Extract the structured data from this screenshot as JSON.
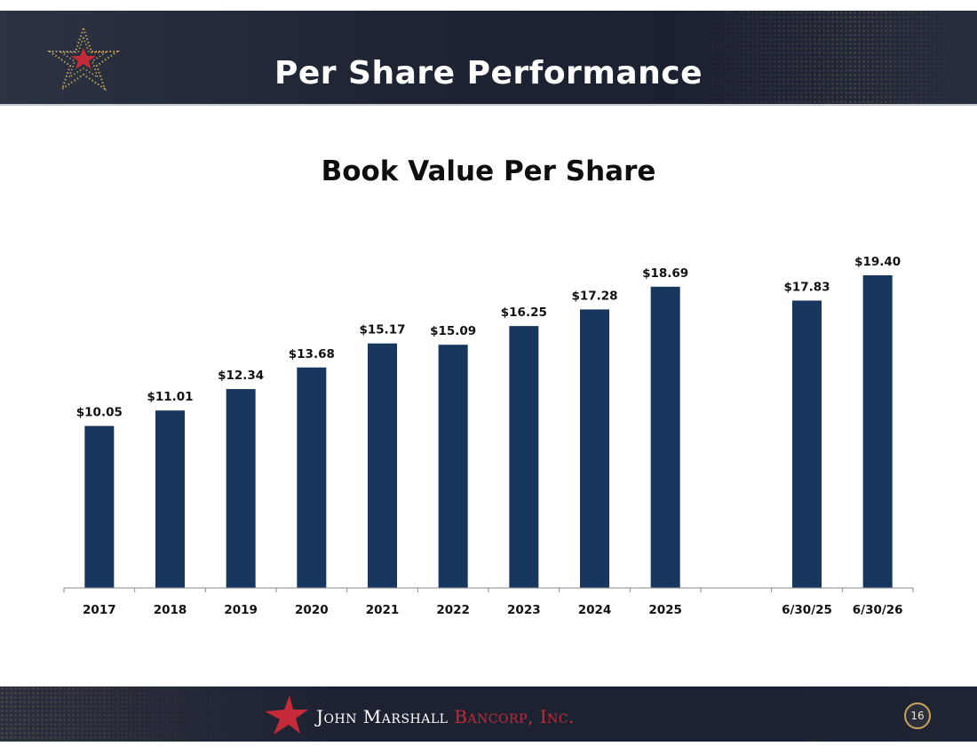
{
  "header": {
    "title": "Per Share Performance"
  },
  "footer": {
    "brand_primary": "John Marshall",
    "brand_secondary": "Bancorp, Inc.",
    "page_number": "16"
  },
  "colors": {
    "bar": "#17375e",
    "header_bg": "#1e2432",
    "brand_red": "#c42a38",
    "gold": "#c9a45a"
  },
  "icons": {
    "header_logo": "star-logo-icon",
    "footer_logo": "star-icon"
  },
  "chart_data": {
    "type": "bar",
    "title": "Book Value Per Share",
    "xlabel": "",
    "ylabel": "",
    "ylim": [
      0,
      20.5
    ],
    "grid": false,
    "categories": [
      "2017",
      "2018",
      "2019",
      "2020",
      "2021",
      "2022",
      "2023",
      "2024",
      "2025",
      "",
      "6/30/25",
      "6/30/26"
    ],
    "values": [
      10.05,
      11.01,
      12.34,
      13.68,
      15.17,
      15.09,
      16.25,
      17.28,
      18.69,
      null,
      17.83,
      19.4
    ],
    "labels": [
      "$10.05",
      "$11.01",
      "$12.34",
      "$13.68",
      "$15.17",
      "$15.09",
      "$16.25",
      "$17.28",
      "$18.69",
      "",
      "$17.83",
      "$19.40"
    ]
  }
}
